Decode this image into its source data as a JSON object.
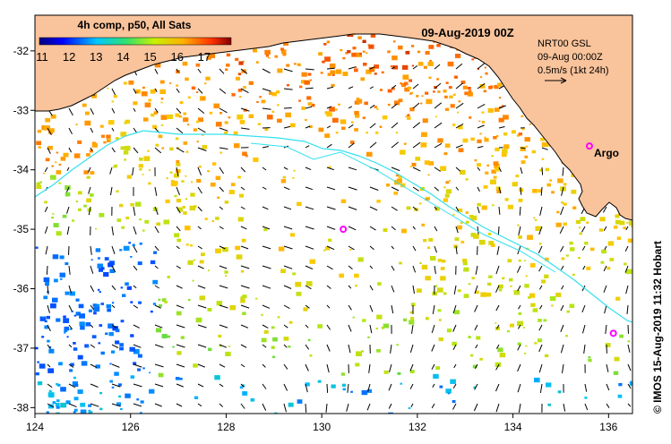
{
  "colorbar": {
    "title": "4h comp, p50, All Sats",
    "ticks": [
      "11",
      "12",
      "13",
      "14",
      "15",
      "16",
      "17"
    ],
    "tick_values": [
      11,
      12,
      13,
      14,
      15,
      16,
      17
    ],
    "range": [
      10.9,
      18.0
    ]
  },
  "date_title": "09-Aug-2019 00Z",
  "model_info": {
    "line1": "NRT00 GSL",
    "line2": "09-Aug 00:00Z",
    "line3": "0.5m/s (1kt 24h)"
  },
  "argo_label": "Argo",
  "credit": "© IMOS 15-Aug-2019 11:32 Hobart",
  "axes": {
    "x_range": [
      124,
      136.5
    ],
    "y_range": [
      -38.1,
      -31.4
    ],
    "x_ticks": [
      "124",
      "126",
      "128",
      "130",
      "132",
      "134",
      "136"
    ],
    "x_tick_values": [
      124,
      126,
      128,
      130,
      132,
      134,
      136
    ],
    "y_ticks": [
      "-32",
      "-33",
      "-34",
      "-35",
      "-36",
      "-37",
      "-38"
    ],
    "y_tick_values": [
      -32,
      -33,
      -34,
      -35,
      -36,
      -37,
      -38
    ]
  },
  "argo_floats": [
    {
      "lon": 135.6,
      "lat": -33.6
    },
    {
      "lon": 130.45,
      "lat": -35.0
    },
    {
      "lon": 136.1,
      "lat": -36.75
    }
  ],
  "colors": {
    "land": "#f9c39b",
    "ocean": "#ffffff",
    "argo": "#ff00ff",
    "contour": "#33e0ee"
  }
}
